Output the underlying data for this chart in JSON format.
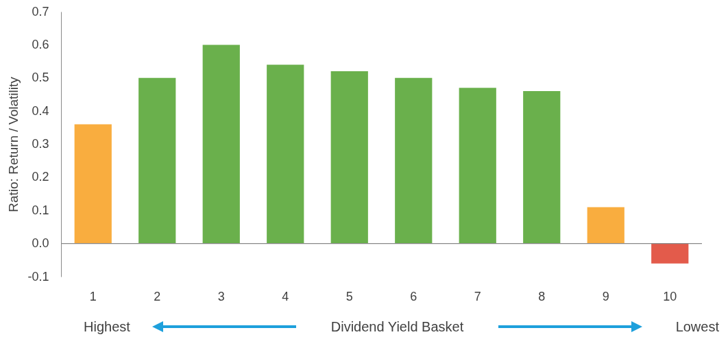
{
  "chart_data": {
    "type": "bar",
    "ylabel": "Ratio: Return / Volatility",
    "xlabel": "Dividend Yield Basket",
    "categories": [
      "1",
      "2",
      "3",
      "4",
      "5",
      "6",
      "7",
      "8",
      "9",
      "10"
    ],
    "values": [
      0.36,
      0.5,
      0.6,
      0.54,
      0.52,
      0.5,
      0.47,
      0.46,
      0.11,
      -0.06
    ],
    "colors": [
      "#f9ad3f",
      "#6ab04c",
      "#6ab04c",
      "#6ab04c",
      "#6ab04c",
      "#6ab04c",
      "#6ab04c",
      "#6ab04c",
      "#f9ad3f",
      "#e35b4b"
    ],
    "ylim": [
      -0.1,
      0.7
    ],
    "yticks": [
      -0.1,
      {
        "value": 0,
        "label": "0.0"
      },
      0.1,
      0.2,
      0.3,
      0.4,
      0.5,
      0.6,
      0.7
    ],
    "annotations": [
      "Highest",
      "Lowest"
    ],
    "legend": false
  }
}
